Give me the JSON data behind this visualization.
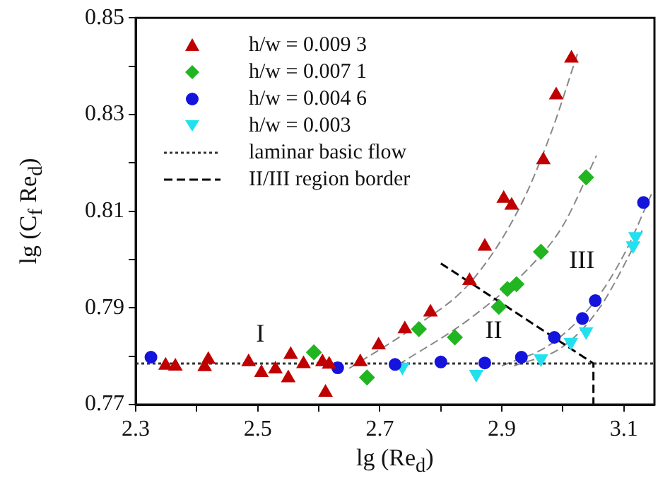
{
  "chart_data": {
    "type": "scatter",
    "xlabel": "lg (Re$_{d}$)",
    "ylabel": "lg (C$_{f}$ Re$_{d}$)",
    "xlim": [
      2.3,
      3.15
    ],
    "xticks": [
      2.3,
      {
        "value": 2.4,
        "label": null
      },
      2.5,
      {
        "value": 2.6,
        "label": null
      },
      2.7,
      {
        "value": 2.8,
        "label": null
      },
      2.9,
      {
        "value": 3.0,
        "label": null
      },
      3.1
    ],
    "ylim": [
      0.77,
      0.85
    ],
    "yticks": [
      0.77,
      {
        "value": 0.78,
        "label": null
      },
      0.79,
      {
        "value": 0.8,
        "label": null
      },
      0.81,
      {
        "value": 0.82,
        "label": null
      },
      0.83,
      {
        "value": 0.84,
        "label": null
      },
      0.85
    ],
    "grid": false,
    "legend": "top left",
    "series": [
      {
        "name": "h/w = 0.009 3",
        "color": "#c00000",
        "marker": "triangle",
        "x": [
          2.349,
          2.365,
          2.413,
          2.419,
          2.485,
          2.506,
          2.529,
          2.55,
          2.554,
          2.575,
          2.606,
          2.617,
          2.611,
          2.668,
          2.698,
          2.741,
          2.783,
          2.847,
          2.872,
          2.903,
          2.916,
          2.968,
          2.989,
          3.014
        ],
        "values": [
          0.7781,
          0.7779,
          0.7778,
          0.7793,
          0.7788,
          0.7766,
          0.7773,
          0.7755,
          0.7803,
          0.7784,
          0.7788,
          0.7783,
          0.7725,
          0.7788,
          0.7823,
          0.7856,
          0.7891,
          0.7956,
          0.8027,
          0.8126,
          0.8112,
          0.8206,
          0.834,
          0.8416
        ]
      },
      {
        "name": "h/w = 0.007 1",
        "color": "#22b522",
        "marker": "diamond",
        "x": [
          2.592,
          2.679,
          2.764,
          2.823,
          2.895,
          2.909,
          2.924,
          2.964,
          3.038
        ],
        "values": [
          0.7808,
          0.7756,
          0.7856,
          0.7839,
          0.7902,
          0.7939,
          0.7949,
          0.8016,
          0.817
        ]
      },
      {
        "name": "h/w = 0.004 6",
        "color": "#1414dc",
        "marker": "circle",
        "x": [
          2.325,
          2.631,
          2.725,
          2.8,
          2.872,
          2.932,
          2.986,
          3.032,
          3.053,
          3.132
        ],
        "values": [
          0.7798,
          0.7776,
          0.7783,
          0.7788,
          0.7786,
          0.7798,
          0.7839,
          0.7878,
          0.7915,
          0.8118
        ]
      },
      {
        "name": "h/w = 0.003",
        "color": "#22e0f0",
        "marker": "triangle-down",
        "x": [
          2.737,
          2.858,
          2.964,
          3.013,
          3.038,
          3.115,
          3.119
        ],
        "values": [
          0.7778,
          0.7763,
          0.7795,
          0.7829,
          0.7851,
          0.8029,
          0.8048
        ]
      },
      {
        "name": "laminar basic flow",
        "type": "line",
        "color": "#333333",
        "line_style": "dotted",
        "marker": "none",
        "x": [
          2.3,
          3.15
        ],
        "values": [
          0.7785,
          0.7785
        ]
      },
      {
        "name": "II/III region border",
        "type": "line",
        "color": "#000000",
        "line_style": "dashed",
        "marker": "none",
        "x": [
          2.8,
          3.05,
          3.05
        ],
        "values": [
          0.7992,
          0.7785,
          0.77
        ]
      },
      {
        "type": "line",
        "color": "#888888",
        "line_style": "dashed",
        "marker": "none",
        "x": [
          2.65,
          2.75,
          2.85,
          2.93,
          2.98,
          3.025
        ],
        "values": [
          0.7775,
          0.7855,
          0.7955,
          0.811,
          0.826,
          0.843
        ]
      },
      {
        "type": "line",
        "color": "#888888",
        "line_style": "dashed",
        "marker": "none",
        "x": [
          2.73,
          2.85,
          2.95,
          3.0,
          3.055
        ],
        "values": [
          0.7782,
          0.788,
          0.799,
          0.807,
          0.8215
        ]
      },
      {
        "type": "line",
        "color": "#888888",
        "line_style": "dashed",
        "marker": "none",
        "x": [
          2.9,
          2.98,
          3.05,
          3.1,
          3.145
        ],
        "values": [
          0.778,
          0.7825,
          0.791,
          0.801,
          0.8135
        ]
      },
      {
        "type": "line",
        "color": "#888888",
        "line_style": "dashed",
        "marker": "none",
        "x": [
          2.92,
          3.0,
          3.06,
          3.13
        ],
        "values": [
          0.778,
          0.782,
          0.79,
          0.806
        ]
      }
    ],
    "annotations": [
      "I",
      "II",
      "III"
    ]
  }
}
